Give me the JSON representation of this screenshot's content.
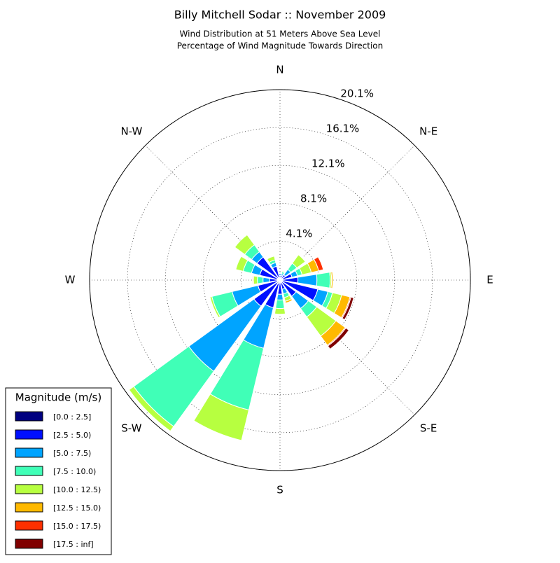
{
  "chart_data": {
    "type": "windrose",
    "title": "Billy Mitchell Sodar :: November 2009",
    "subtitle": [
      "Wind Distribution at 51 Meters Above Sea Level",
      "Percentage of Wind Magnitude Towards Direction"
    ],
    "categories": [
      "N",
      null,
      "N-E",
      null,
      "E",
      null,
      "S-E",
      null,
      "S",
      null,
      "S-W",
      null,
      "W",
      null,
      "N-W",
      null
    ],
    "rlim": [
      0,
      20.1
    ],
    "rticks": [
      {
        "value": 4.1,
        "label": "4.1%"
      },
      {
        "value": 8.1,
        "label": "8.1%"
      },
      {
        "value": 12.1,
        "label": "12.1%"
      },
      {
        "value": 16.1,
        "label": "16.1%"
      },
      {
        "value": 20.1,
        "label": "20.1%"
      }
    ],
    "grid": true,
    "legend_title": "Magnitude (m/s)",
    "legend_position": "lower left",
    "series": [
      {
        "name": "[0.0 : 2.5]",
        "color": "#000080",
        "values": [
          0.2,
          0.2,
          0.2,
          0.3,
          0.3,
          0.3,
          0.3,
          0.2,
          0.3,
          0.4,
          0.4,
          0.3,
          0.3,
          0.3,
          0.3,
          0.3
        ]
      },
      {
        "name": "[2.5 : 5.0)",
        "color": "#0010ff",
        "values": [
          0.3,
          0.3,
          0.5,
          1.0,
          1.6,
          3.8,
          1.8,
          0.8,
          1.2,
          2.6,
          3.0,
          2.1,
          0.8,
          1.9,
          2.7,
          1.2
        ]
      },
      {
        "name": "[5.0 : 7.5)",
        "color": "#00a4ff",
        "values": [
          0.2,
          0.2,
          0.7,
          0.6,
          2.0,
          1.1,
          1.6,
          0.5,
          0.6,
          4.4,
          8.5,
          2.8,
          0.7,
          0.9,
          0.7,
          0.4
        ]
      },
      {
        "name": "[7.5 : 10.0)",
        "color": "#40ffb7",
        "values": [
          0.1,
          0.2,
          0.8,
          0.5,
          1.4,
          0.5,
          1.1,
          0.4,
          0.9,
          6.7,
          7.2,
          2.2,
          0.6,
          0.9,
          0.9,
          0.3
        ]
      },
      {
        "name": "[10.0 : 12.5)",
        "color": "#b7ff40",
        "values": [
          0,
          0.1,
          1.1,
          1.0,
          0.15,
          1.0,
          2.5,
          0.4,
          0.6,
          3.3,
          0.6,
          0.2,
          0.4,
          0.8,
          1.3,
          0.4
        ]
      },
      {
        "name": "[12.5 : 15.0)",
        "color": "#ffb900",
        "values": [
          0,
          0,
          0,
          0.8,
          0.15,
          0.9,
          1.2,
          0.2,
          0,
          0,
          0,
          0,
          0.1,
          0,
          0,
          0
        ]
      },
      {
        "name": "[15.0 : 17.5)",
        "color": "#ff3000",
        "values": [
          0,
          0,
          0,
          0.5,
          0,
          0.1,
          0.1,
          0,
          0,
          0,
          0,
          0,
          0,
          0,
          0,
          0
        ]
      },
      {
        "name": "[17.5 : inf]",
        "color": "#800000",
        "values": [
          0,
          0,
          0,
          0,
          0,
          0.3,
          0.4,
          0,
          0,
          0,
          0,
          0,
          0,
          0,
          0,
          0
        ]
      }
    ]
  }
}
